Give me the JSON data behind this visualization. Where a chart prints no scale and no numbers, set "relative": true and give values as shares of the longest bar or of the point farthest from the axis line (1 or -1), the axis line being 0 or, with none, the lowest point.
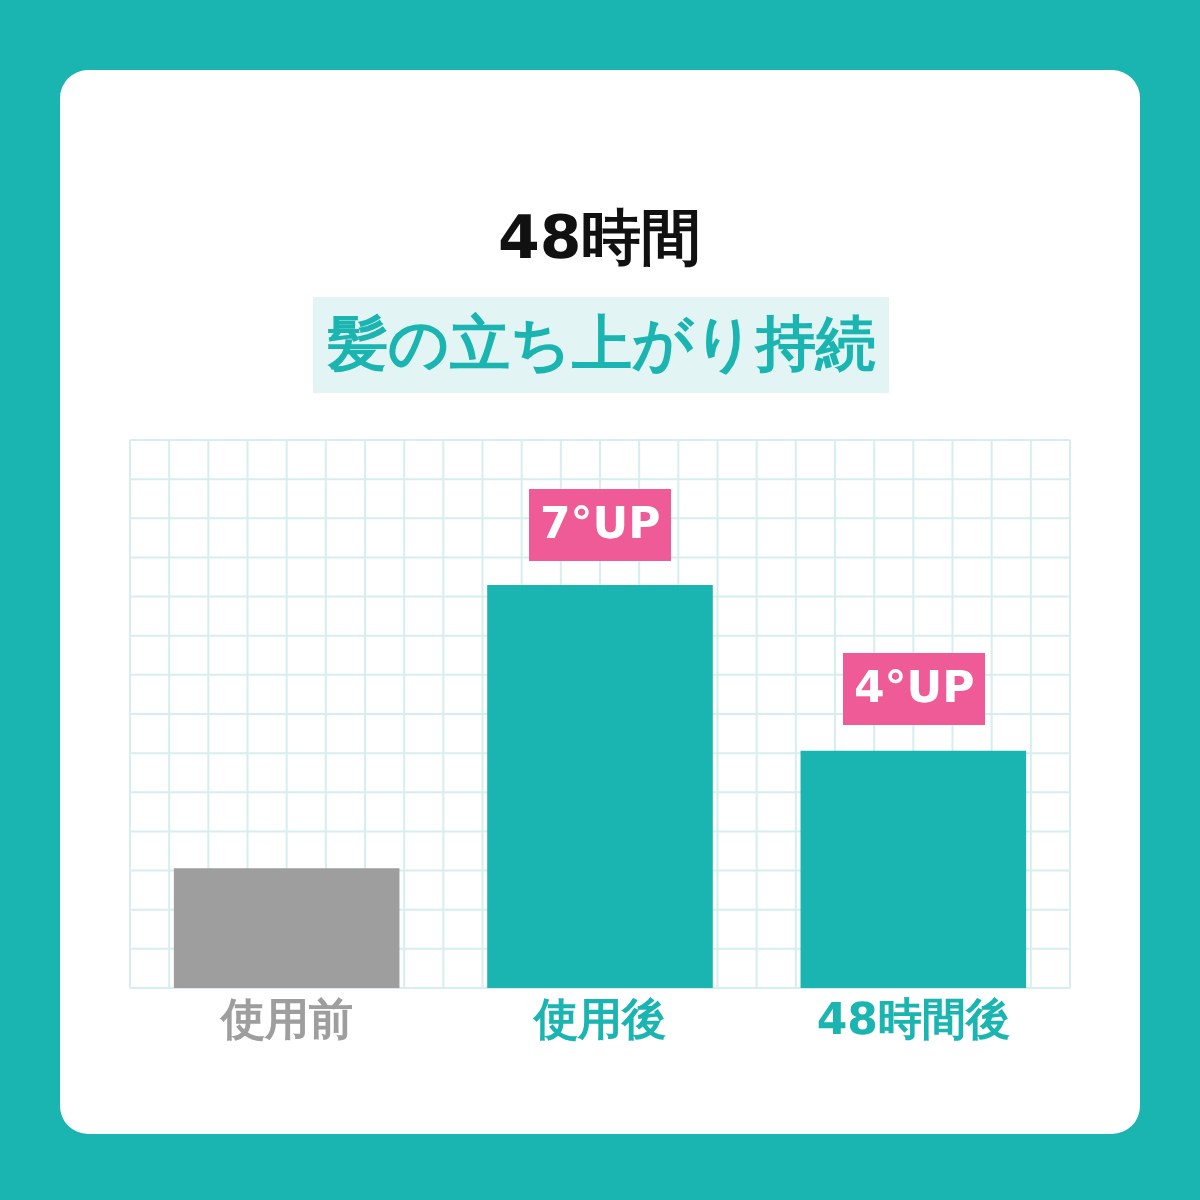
{
  "chart_data": {
    "type": "bar",
    "title": "48時間",
    "subtitle": "髪の立ち上がり持続",
    "categories": [
      "使用前",
      "使用後",
      "48時間後"
    ],
    "values": [
      0.297,
      1,
      0.589
    ],
    "colors": [
      "#9e9e9e",
      "#1ab5b0",
      "#1ab5b0"
    ],
    "annotations": [
      {
        "text": "7°UP",
        "x": "使用後",
        "y": 1
      },
      {
        "text": "4°UP",
        "x": "48時間後",
        "y": 0.589
      }
    ],
    "relative": true,
    "grid": true
  }
}
